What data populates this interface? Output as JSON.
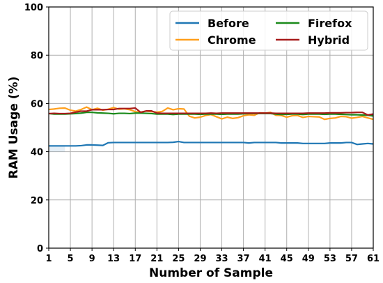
{
  "chart_data": {
    "type": "line",
    "title": "",
    "xlabel": "Number of Sample",
    "ylabel": "RAM Usage (%)",
    "xlim": [
      1,
      61
    ],
    "ylim": [
      0,
      100
    ],
    "x_ticks": [
      "1",
      "5",
      "9",
      "13",
      "17",
      "21",
      "25",
      "29",
      "33",
      "37",
      "41",
      "45",
      "49",
      "53",
      "57",
      "61"
    ],
    "y_ticks": [
      "0",
      "20",
      "40",
      "60",
      "80",
      "100"
    ],
    "grid": true,
    "legend": {
      "placement": "top-right",
      "columns": 2,
      "order": [
        "Before",
        "Firefox",
        "Chrome",
        "Hybrid"
      ]
    },
    "x": [
      1,
      2,
      3,
      4,
      5,
      6,
      7,
      8,
      9,
      10,
      11,
      12,
      13,
      14,
      15,
      16,
      17,
      18,
      19,
      20,
      21,
      22,
      23,
      24,
      25,
      26,
      27,
      28,
      29,
      30,
      31,
      32,
      33,
      34,
      35,
      36,
      37,
      38,
      39,
      40,
      41,
      42,
      43,
      44,
      45,
      46,
      47,
      48,
      49,
      50,
      51,
      52,
      53,
      54,
      55,
      56,
      57,
      58,
      59,
      60,
      61
    ],
    "series": [
      {
        "name": "Before",
        "color": "#1f77b4",
        "values": [
          42.4,
          42.4,
          42.4,
          42.4,
          42.4,
          42.4,
          42.5,
          42.8,
          42.8,
          42.7,
          42.6,
          43.7,
          43.8,
          43.8,
          43.8,
          43.8,
          43.8,
          43.8,
          43.8,
          43.8,
          43.8,
          43.8,
          43.8,
          43.9,
          44.2,
          43.8,
          43.8,
          43.8,
          43.8,
          43.8,
          43.8,
          43.8,
          43.8,
          43.8,
          43.8,
          43.8,
          43.8,
          43.6,
          43.8,
          43.8,
          43.8,
          43.8,
          43.8,
          43.6,
          43.6,
          43.6,
          43.6,
          43.4,
          43.4,
          43.4,
          43.4,
          43.4,
          43.6,
          43.6,
          43.6,
          43.8,
          43.8,
          43.0,
          43.2,
          43.4,
          43.2
        ],
        "fill_under_start": true
      },
      {
        "name": "Chrome",
        "color": "#ff9f1c",
        "values": [
          57.5,
          57.7,
          58.0,
          58.1,
          57.2,
          56.8,
          57.5,
          58.5,
          57.4,
          58.0,
          57.2,
          57.6,
          58.3,
          57.6,
          57.8,
          57.4,
          56.6,
          56.4,
          56.8,
          56.6,
          56.4,
          56.7,
          58.1,
          57.4,
          57.8,
          57.7,
          54.7,
          54.0,
          54.3,
          55.0,
          55.4,
          54.5,
          53.6,
          54.3,
          53.8,
          54.1,
          54.9,
          55.3,
          55.1,
          56.1,
          56.0,
          56.3,
          55.1,
          55.0,
          54.3,
          54.9,
          55.0,
          54.2,
          54.6,
          54.5,
          54.4,
          53.4,
          53.8,
          54.0,
          54.6,
          54.5,
          53.9,
          54.2,
          54.6,
          54.0,
          53.4
        ]
      },
      {
        "name": "Firefox",
        "color": "#1b8a1b",
        "values": [
          55.8,
          55.6,
          55.6,
          55.6,
          55.7,
          55.8,
          56.0,
          56.3,
          56.3,
          56.1,
          56.0,
          55.9,
          55.7,
          55.9,
          55.9,
          55.8,
          56.0,
          56.0,
          55.9,
          55.8,
          55.6,
          55.6,
          55.6,
          55.4,
          55.6,
          55.6,
          55.6,
          55.6,
          55.5,
          55.6,
          55.6,
          55.6,
          55.5,
          55.6,
          55.6,
          55.6,
          55.7,
          55.8,
          55.8,
          55.8,
          55.8,
          55.8,
          55.6,
          55.4,
          55.5,
          55.6,
          55.6,
          55.4,
          55.6,
          55.6,
          55.6,
          55.5,
          55.6,
          55.6,
          55.5,
          55.4,
          55.3,
          55.3,
          55.2,
          55.1,
          54.8
        ]
      },
      {
        "name": "Hybrid",
        "color": "#a81c1c",
        "values": [
          55.8,
          55.9,
          55.8,
          55.8,
          55.9,
          56.4,
          56.8,
          56.8,
          57.4,
          57.4,
          57.4,
          57.5,
          57.5,
          57.9,
          57.9,
          57.9,
          58.1,
          56.3,
          56.9,
          56.9,
          56.0,
          55.9,
          55.9,
          55.9,
          55.9,
          55.9,
          55.9,
          55.9,
          55.9,
          55.9,
          56.0,
          55.9,
          56.0,
          56.0,
          56.0,
          56.0,
          56.0,
          56.0,
          56.0,
          56.0,
          56.0,
          56.0,
          55.9,
          55.9,
          55.9,
          55.9,
          55.9,
          55.9,
          56.0,
          56.0,
          56.0,
          56.0,
          56.1,
          56.1,
          56.1,
          56.2,
          56.2,
          56.3,
          56.3,
          55.2,
          55.6
        ]
      }
    ]
  }
}
